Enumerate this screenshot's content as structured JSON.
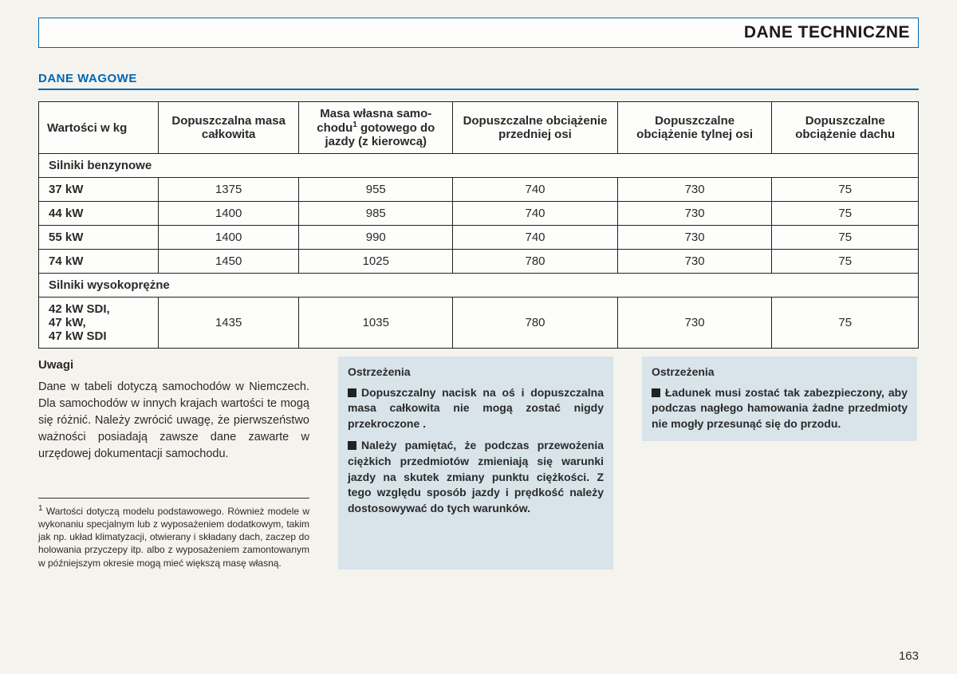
{
  "header": {
    "title": "DANE TECHNICZNE"
  },
  "section": {
    "title": "DANE WAGOWE"
  },
  "table": {
    "headers": {
      "c0": "Wartości w kg",
      "c1": "Dopuszczalna masa całkowita",
      "c2_line1": "Masa własna samo-",
      "c2_line2": "chodu",
      "c2_line3": " gotowego do jazdy (z kierowcą)",
      "c3": "Dopuszczalne obciążenie przedniej osi",
      "c4": "Dopuszczalne obciążenie tylnej osi",
      "c5": "Dopuszczalne obciążenie dachu"
    },
    "group1": "Silniki benzynowe",
    "rows": [
      {
        "label": "37 kW",
        "v": [
          "1375",
          "955",
          "740",
          "730",
          "75"
        ]
      },
      {
        "label": "44 kW",
        "v": [
          "1400",
          "985",
          "740",
          "730",
          "75"
        ]
      },
      {
        "label": "55 kW",
        "v": [
          "1400",
          "990",
          "740",
          "730",
          "75"
        ]
      },
      {
        "label": "74 kW",
        "v": [
          "1450",
          "1025",
          "780",
          "730",
          "75"
        ]
      }
    ],
    "group2": "Silniki wysokoprężne",
    "row_diesel": {
      "label_l1": "42 kW SDI,",
      "label_l2": "47 kW,",
      "label_l3": "47 kW SDI",
      "v": [
        "1435",
        "1035",
        "780",
        "730",
        "75"
      ]
    }
  },
  "notes": {
    "title": "Uwagi",
    "body": "Dane w tabeli dotyczą samochodów w Niemczech. Dla samochodów w innych krajach wartości te mogą się różnić. Należy zwrócić uwagę, że pierwszeństwo ważności posiadają zawsze dane zawarte w urzędowej dokumentacji samochodu."
  },
  "footnote": {
    "num": "1",
    "text": "Wartości dotyczą modelu podstawowego. Również modele w wykonaniu specjalnym lub z wyposażeniem dodatkowym, takim jak np. układ klimatyzacji, otwierany i składany dach, zaczep do holowania przyczepy itp. albo z wyposażeniem zamontowanym w późniejszym okresie mogą mieć większą masę własną."
  },
  "warn1": {
    "title": "Ostrzeżenia",
    "p1": "Dopuszczalny nacisk na oś i dopuszczalna masa całkowita nie mogą zostać nigdy przekroczone .",
    "p2": "Należy pamiętać, że podczas przewożenia ciężkich przedmiotów zmieniają się warunki jazdy na skutek zmiany punktu ciężkości. Z tego względu sposób jazdy i prędkość należy dostosowywać do tych warunków."
  },
  "warn2": {
    "title": "Ostrzeżenia",
    "p1": "Ładunek musi zostać tak zabezpieczony, aby podczas nagłego hamowania żadne przedmioty nie mogły przesunąć się do przodu."
  },
  "page_number": "163",
  "style": {
    "accent": "#0066b3",
    "warn_bg": "#d8e4ea",
    "page_bg": "#f5f3ee"
  }
}
